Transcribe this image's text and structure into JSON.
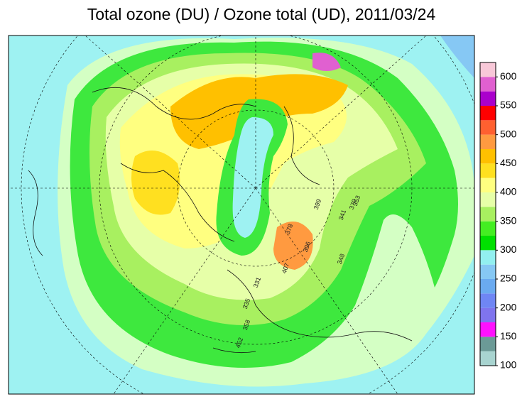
{
  "header": {
    "title": "Total ozone (DU) / Ozone total (UD), 2011/03/24"
  },
  "colorbar": {
    "levels": [
      100,
      125,
      150,
      175,
      200,
      225,
      250,
      275,
      300,
      325,
      350,
      375,
      400,
      425,
      450,
      475,
      500,
      525,
      550,
      575,
      600,
      625
    ],
    "colors": [
      "#a8d4d0",
      "#6b9a96",
      "#ff10ff",
      "#7f74ee",
      "#6f86f4",
      "#6aaaf0",
      "#86c8f4",
      "#92f0f0",
      "#00e000",
      "#44ee22",
      "#a8f060",
      "#e6ffa8",
      "#ffff80",
      "#ffe020",
      "#ffc000",
      "#ff9a40",
      "#ff6030",
      "#ff0000",
      "#aa00cc",
      "#e060d0",
      "#f8c8d8"
    ],
    "ticks": [
      100,
      150,
      200,
      250,
      300,
      350,
      400,
      450,
      500,
      550,
      600
    ]
  },
  "map_labels": [
    "370",
    "341",
    "353",
    "399",
    "396",
    "407",
    "348",
    "378",
    "331",
    "335",
    "358",
    "452"
  ]
}
